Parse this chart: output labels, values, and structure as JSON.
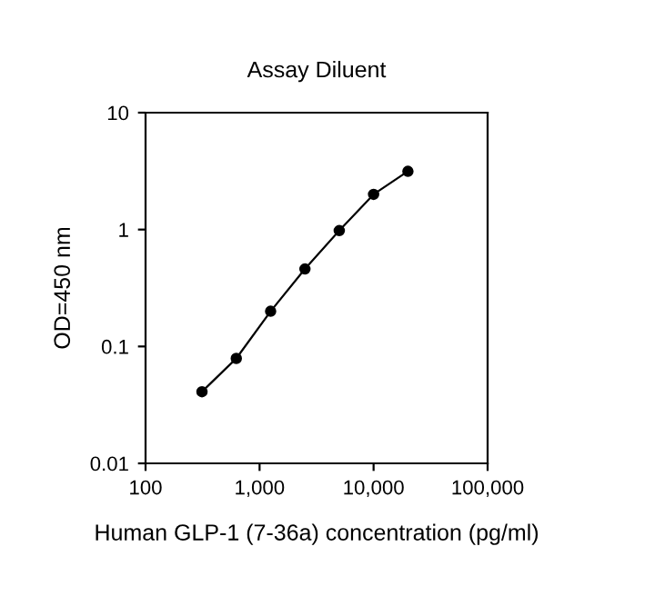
{
  "chart_data": {
    "type": "line",
    "title": "Assay Diluent",
    "xlabel": "Human GLP-1 (7-36a) concentration (pg/ml)",
    "ylabel": "OD=450 nm",
    "x": [
      312.5,
      625,
      1250,
      2500,
      5000,
      10000,
      20000
    ],
    "series": [
      {
        "color": "#000000",
        "values": [
          0.041,
          0.079,
          0.2,
          0.46,
          0.98,
          2.0,
          3.15
        ]
      }
    ],
    "log": "xy",
    "xlim": [
      100,
      100000
    ],
    "ylim": [
      0.01,
      10
    ],
    "xticks": [
      {
        "value": 100,
        "label": "100"
      },
      {
        "value": 1000,
        "label": "1,000"
      },
      {
        "value": 10000,
        "label": "10,000"
      },
      {
        "value": 100000,
        "label": "100,000"
      }
    ],
    "yticks": [
      0.01,
      0.1,
      1,
      10
    ],
    "marker": "circle",
    "line_style": "solid",
    "grid": false,
    "legend": false
  }
}
